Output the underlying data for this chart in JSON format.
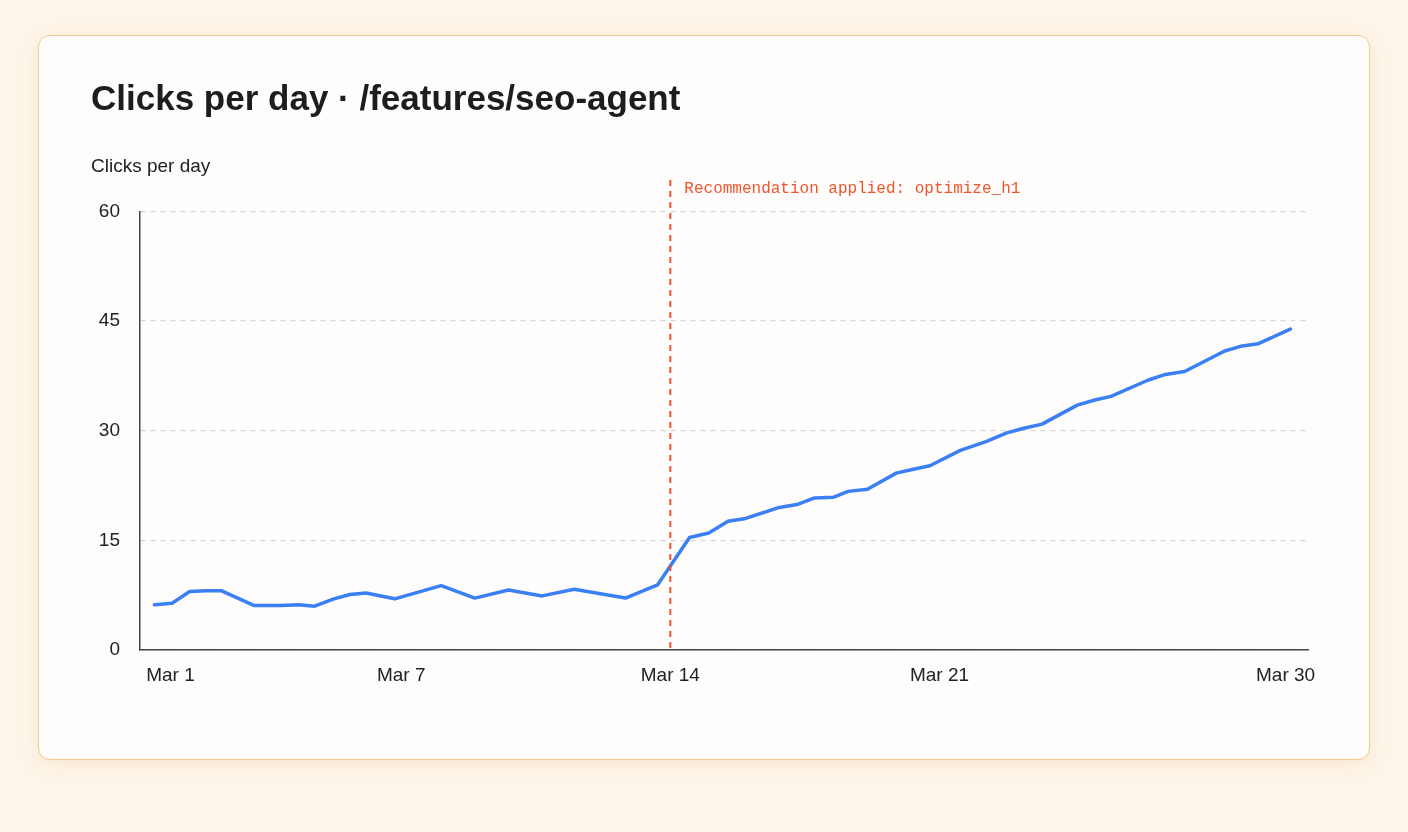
{
  "chart_data": {
    "type": "line",
    "title": "Clicks per day · /features/seo-agent",
    "ylabel": "Clicks per day",
    "xlim": [
      "--02-28T05:00",
      "--03-30T14:00"
    ],
    "xticks": [
      {
        "value": "--03-01",
        "label": "Mar 1"
      },
      {
        "value": "--03-07",
        "label": "Mar 7"
      },
      {
        "value": "--03-14",
        "label": "Mar 14"
      },
      {
        "value": "--03-21",
        "label": "Mar 21"
      },
      {
        "value": "--03-30",
        "label": "Mar 30"
      }
    ],
    "ylim": [
      0,
      60
    ],
    "yticks": [
      0,
      15,
      30,
      45,
      60
    ],
    "grid": "y",
    "legend": false,
    "marker": "none",
    "line_style": "solid",
    "series": [
      {
        "color": "#3b7ff5",
        "x": [
          "--02-28T14:00",
          "--03-01T01:00",
          "--03-01T12:00",
          "--03-01T22:00",
          "--03-02T08:00",
          "--03-03T04:00",
          "--03-03T21:00",
          "--03-04T08:00",
          "--03-04T18:00",
          "--03-05T06:00",
          "--03-05T16:00",
          "--03-06T02:00",
          "--03-06T20:00",
          "--03-08T01:00",
          "--03-08T22:00",
          "--03-09T19:00",
          "--03-10T16:00",
          "--03-11T12:00",
          "--03-12T20:00",
          "--03-13T16:00",
          "--03-14T12:00",
          "--03-15T00:00",
          "--03-15T12:00",
          "--03-15T23:00",
          "--03-16T20:00",
          "--03-17T07:00",
          "--03-17T18:00",
          "--03-18T06:00",
          "--03-18T15:00",
          "--03-19T03:00",
          "--03-19T21:00",
          "--03-20T07:00",
          "--03-20T18:00",
          "--03-21T13:00",
          "--03-22T05:00",
          "--03-22T18:00",
          "--03-23T04:00",
          "--03-23T16:00",
          "--03-24T14:00",
          "--03-25T01:00",
          "--03-25T11:00",
          "--03-26T10:00",
          "--03-26T21:00",
          "--03-27T09:00",
          "--03-28T10:00",
          "--03-28T21:00",
          "--03-29T07:00",
          "--03-30T03:00"
        ],
        "values": [
          6.2,
          6.4,
          8.0,
          8.1,
          8.1,
          6.1,
          6.1,
          6.2,
          6.0,
          7.0,
          7.6,
          7.8,
          7.0,
          8.8,
          7.1,
          8.2,
          7.4,
          8.3,
          7.1,
          8.9,
          15.4,
          16.0,
          17.6,
          18.0,
          19.5,
          19.9,
          20.8,
          20.9,
          21.7,
          22.0,
          24.2,
          24.7,
          25.2,
          27.3,
          28.5,
          29.7,
          30.3,
          30.9,
          33.5,
          34.2,
          34.7,
          36.9,
          37.7,
          38.1,
          40.9,
          41.6,
          41.9,
          43.9
        ]
      }
    ],
    "ref_lines": [
      {
        "axis": "x",
        "value": "--03-14",
        "label": "Recommendation applied: optimize_h1",
        "color": "#f0542d",
        "line_style": "dashed"
      }
    ]
  }
}
